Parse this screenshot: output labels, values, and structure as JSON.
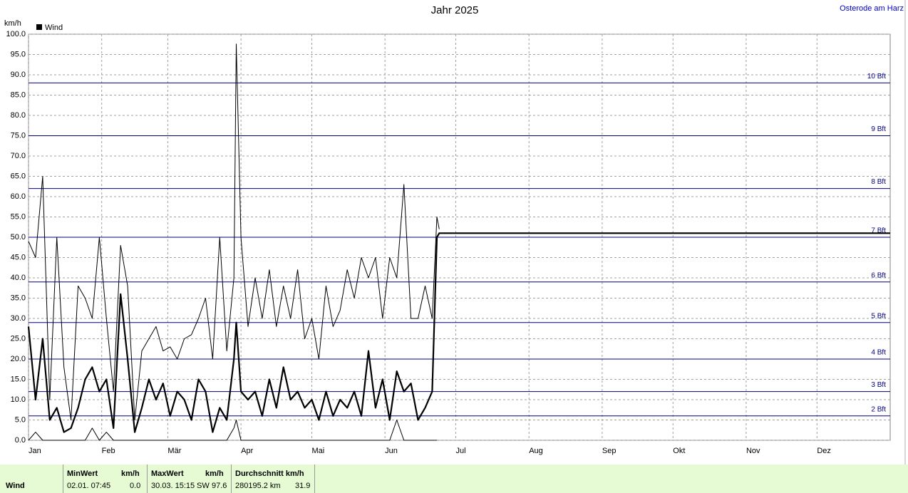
{
  "chart_data": {
    "type": "line",
    "title": "Jahr 2025",
    "location": "Osterode am Harz",
    "y_label": "km/h",
    "x": [
      1,
      4,
      7,
      10,
      13,
      16,
      19,
      22,
      25,
      28,
      31,
      34,
      37,
      40,
      43,
      46,
      49,
      52,
      55,
      58,
      61,
      64,
      67,
      70,
      73,
      76,
      79,
      82,
      85,
      88,
      89,
      91,
      94,
      97,
      100,
      103,
      106,
      109,
      112,
      115,
      118,
      121,
      124,
      127,
      130,
      133,
      136,
      139,
      142,
      145,
      148,
      151,
      154,
      157,
      160,
      163,
      166,
      169,
      172,
      174,
      175,
      366
    ],
    "series": [
      {
        "name": "Wind",
        "color": "#000000",
        "width": 2.2,
        "values": [
          28,
          10,
          25,
          5,
          8,
          2,
          3,
          8,
          15,
          18,
          12,
          15,
          3,
          36,
          20,
          2,
          8,
          15,
          10,
          14,
          6,
          12,
          10,
          5,
          15,
          12,
          2,
          8,
          5,
          20,
          29,
          12,
          10,
          12,
          6,
          15,
          8,
          18,
          10,
          12,
          8,
          10,
          5,
          12,
          6,
          10,
          8,
          12,
          6,
          22,
          8,
          15,
          5,
          17,
          12,
          14,
          5,
          8,
          12,
          50,
          51,
          51
        ]
      },
      {
        "color": "#000000",
        "width": 1,
        "values": [
          49,
          45,
          65,
          10,
          50,
          18,
          5,
          38,
          35,
          30,
          50,
          30,
          12,
          48,
          38,
          5,
          22,
          25,
          28,
          22,
          23,
          20,
          25,
          26,
          30,
          35,
          20,
          50,
          22,
          40,
          97.6,
          50,
          28,
          40,
          30,
          42,
          28,
          38,
          30,
          42,
          25,
          30,
          20,
          38,
          28,
          32,
          42,
          35,
          45,
          40,
          45,
          30,
          45,
          40,
          63,
          30,
          30,
          38,
          30,
          55,
          52,
          null
        ]
      },
      {
        "color": "#000000",
        "width": 1,
        "values": [
          0,
          2,
          0,
          0,
          0,
          0,
          0,
          0,
          0,
          3,
          0,
          2,
          0,
          0,
          0,
          0,
          0,
          0,
          0,
          0,
          0,
          0,
          0,
          0,
          0,
          0,
          0,
          0,
          0,
          3,
          5,
          0,
          0,
          0,
          0,
          0,
          0,
          0,
          0,
          0,
          0,
          0,
          0,
          0,
          0,
          0,
          0,
          0,
          0,
          0,
          0,
          0,
          0,
          5,
          0,
          0,
          0,
          0,
          0,
          0,
          null,
          null
        ]
      }
    ],
    "xlim": [
      1,
      366
    ],
    "xticks": [
      {
        "value": 1,
        "label": "Jan"
      },
      {
        "value": 32,
        "label": "Feb"
      },
      {
        "value": 60,
        "label": "Mär"
      },
      {
        "value": 91,
        "label": "Apr"
      },
      {
        "value": 121,
        "label": "Mai"
      },
      {
        "value": 152,
        "label": "Jun"
      },
      {
        "value": 182,
        "label": "Jul"
      },
      {
        "value": 213,
        "label": "Aug"
      },
      {
        "value": 244,
        "label": "Sep"
      },
      {
        "value": 274,
        "label": "Okt"
      },
      {
        "value": 305,
        "label": "Nov"
      },
      {
        "value": 335,
        "label": "Dez"
      }
    ],
    "ylim": [
      0,
      100
    ],
    "yticks": [
      {
        "value": 0,
        "label": "0.0"
      },
      {
        "value": 5,
        "label": "5.0"
      },
      {
        "value": 10,
        "label": "10.0"
      },
      {
        "value": 15,
        "label": "15.0"
      },
      {
        "value": 20,
        "label": "20.0"
      },
      {
        "value": 25,
        "label": "25.0"
      },
      {
        "value": 30,
        "label": "30.0"
      },
      {
        "value": 35,
        "label": "35.0"
      },
      {
        "value": 40,
        "label": "40.0"
      },
      {
        "value": 45,
        "label": "45.0"
      },
      {
        "value": 50,
        "label": "50.0"
      },
      {
        "value": 55,
        "label": "55.0"
      },
      {
        "value": 60,
        "label": "60.0"
      },
      {
        "value": 65,
        "label": "65.0"
      },
      {
        "value": 70,
        "label": "70.0"
      },
      {
        "value": 75,
        "label": "75.0"
      },
      {
        "value": 80,
        "label": "80.0"
      },
      {
        "value": 85,
        "label": "85.0"
      },
      {
        "value": 90,
        "label": "90.0"
      },
      {
        "value": 95,
        "label": "95.0"
      },
      {
        "value": 100,
        "label": "100.0"
      }
    ],
    "reference_lines": [
      {
        "value": 6,
        "label": "2 Bft"
      },
      {
        "value": 12,
        "label": "3 Bft"
      },
      {
        "value": 20,
        "label": "4 Bft"
      },
      {
        "value": 29,
        "label": "5 Bft"
      },
      {
        "value": 39,
        "label": "6 Bft"
      },
      {
        "value": 50,
        "label": "7 Bft"
      },
      {
        "value": 62,
        "label": "8 Bft"
      },
      {
        "value": 75,
        "label": "9 Bft"
      },
      {
        "value": 88,
        "label": "10 Bft"
      }
    ],
    "reference_color": "#000080",
    "grid": true
  },
  "footer": {
    "row_label": "Wind",
    "min": {
      "header": "MinWert",
      "unit": "km/h",
      "time": "02.01.  07:45",
      "value": "0.0"
    },
    "max": {
      "header": "MaxWert",
      "unit": "km/h",
      "time": "30.03.  15:15",
      "direction": "SW",
      "value": "97.6"
    },
    "avg": {
      "header": "Durchschnitt km/h",
      "distance": "280195.2 km",
      "value": "31.9"
    }
  }
}
